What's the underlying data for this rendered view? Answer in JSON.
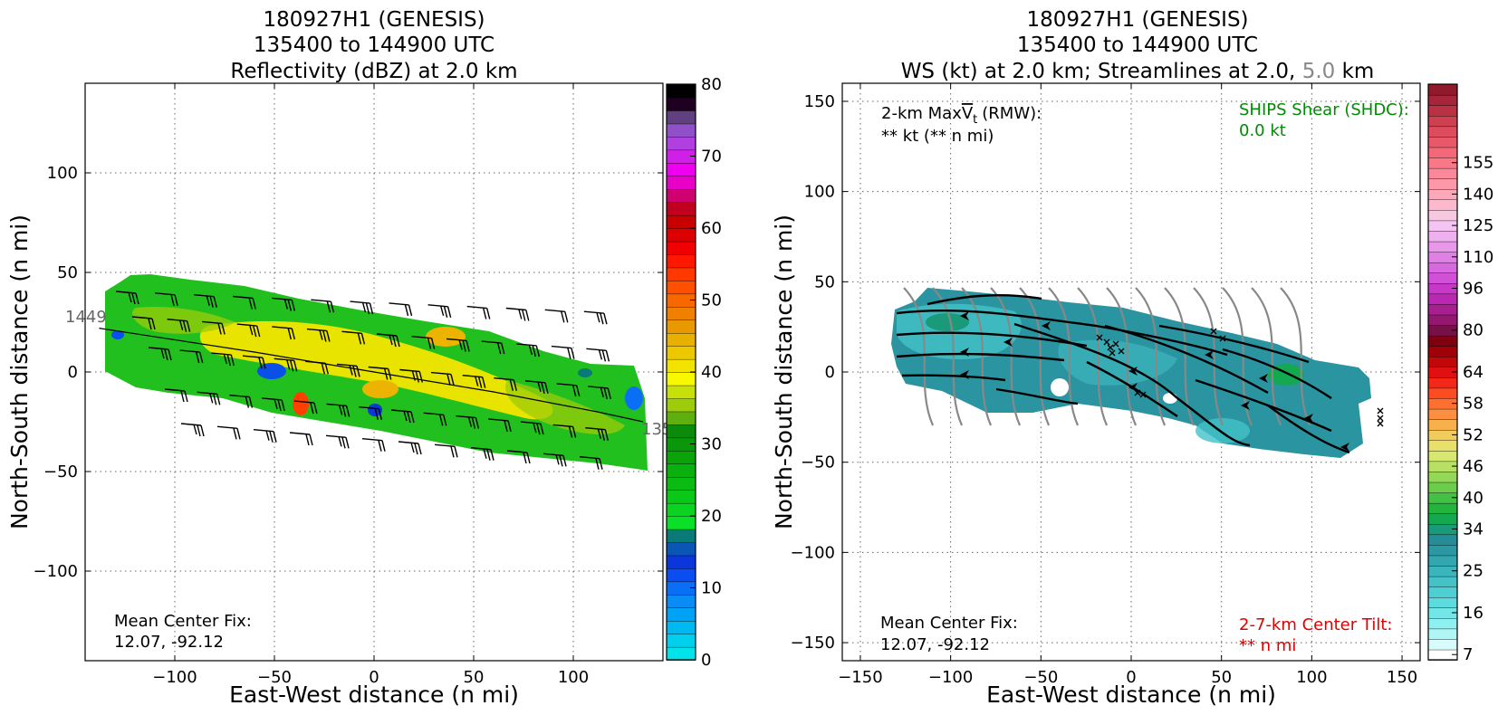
{
  "chart_data": [
    {
      "type": "heatmap",
      "title_lines": [
        "180927H1 (GENESIS)",
        "135400 to 144900 UTC",
        "Reflectivity (dBZ) at 2.0 km"
      ],
      "xlabel": "East-West distance (n mi)",
      "ylabel": "North-South distance (n mi)",
      "xlim": [
        -145,
        145
      ],
      "ylim": [
        -145,
        145
      ],
      "xticks": [
        -100,
        -50,
        0,
        50,
        100
      ],
      "xtick_labels": [
        "−100",
        "−50",
        "0",
        "50",
        "100"
      ],
      "yticks": [
        -100,
        -50,
        0,
        50,
        100
      ],
      "ytick_labels": [
        "−100",
        "−50",
        "0",
        "50",
        "100"
      ],
      "grid": true,
      "annotation_lines": [
        "Mean Center Fix:",
        "12.07, -92.12"
      ],
      "track_labels": {
        "start": "1449",
        "end": "135"
      },
      "track": {
        "x": [
          -138,
          -60,
          0,
          60,
          112,
          135
        ],
        "y": [
          22,
          10,
          0,
          -10,
          -20,
          -25
        ]
      },
      "colorbar": {
        "ticks": [
          0,
          10,
          20,
          30,
          40,
          50,
          60,
          70,
          80
        ],
        "tick_labels": [
          "0",
          "10",
          "20",
          "30",
          "40",
          "50",
          "60",
          "70",
          "80"
        ],
        "range": [
          0,
          80
        ],
        "colors": [
          "#00e3e8",
          "#00d0ec",
          "#00b9f0",
          "#00a2f5",
          "#0a8cf5",
          "#0a6ff5",
          "#0a4ef2",
          "#0a36dc",
          "#0a56b4",
          "#0a7a78",
          "#0ae028",
          "#0ad420",
          "#0ac818",
          "#0abc12",
          "#0ab00e",
          "#0aa40a",
          "#0a980a",
          "#0a8c0a",
          "#5fb00f",
          "#9ccc0a",
          "#c8e00a",
          "#f8f800",
          "#f2e400",
          "#ecc800",
          "#e8b000",
          "#e89800",
          "#f08000",
          "#f86800",
          "#ff5000",
          "#ff3800",
          "#ff1800",
          "#f00000",
          "#dc0000",
          "#c80000",
          "#c0001e",
          "#d0006e",
          "#e800c8",
          "#f000f0",
          "#d020e8",
          "#b040e0",
          "#9050c8",
          "#604080",
          "#200020",
          "#000000"
        ]
      }
    },
    {
      "type": "heatmap",
      "title_lines": [
        "180927H1 (GENESIS)",
        "135400 to 144900 UTC",
        "WS (kt) at 2.0 km; Streamlines at 2.0, ",
        "5.0",
        " km"
      ],
      "xlabel": "East-West distance (n mi)",
      "ylabel": "North-South distance (n mi)",
      "xlim": [
        -160,
        160
      ],
      "ylim": [
        -160,
        160
      ],
      "xticks": [
        -150,
        -100,
        -50,
        0,
        50,
        100,
        150
      ],
      "xtick_labels": [
        "−150",
        "−100",
        "−50",
        "0",
        "50",
        "100",
        "150"
      ],
      "yticks": [
        -150,
        -100,
        -50,
        0,
        50,
        100,
        150
      ],
      "ytick_labels": [
        "−150",
        "−100",
        "−50",
        "0",
        "50",
        "100",
        "150"
      ],
      "grid": true,
      "annotation_lines": [
        "Mean Center Fix:",
        "12.07, -92.12"
      ],
      "maxvt_lines": [
        "2-km Max",
        "V",
        "t",
        "(RMW):",
        "** kt (** n mi)"
      ],
      "shear_lines": [
        "SHIPS Shear (SHDC):",
        "0.0 kt"
      ],
      "tilt_lines": [
        "2-7-km Center Tilt:",
        "** n mi"
      ],
      "colorbar": {
        "tick_labels": [
          "7",
          "16",
          "25",
          "34",
          "40",
          "46",
          "52",
          "58",
          "64",
          "80",
          "96",
          "110",
          "125",
          "140",
          "155"
        ],
        "tick_levels": [
          0,
          4,
          8,
          12,
          15,
          18,
          21,
          24,
          27,
          31,
          35,
          38,
          41,
          44,
          47
        ],
        "n_levels": 49,
        "colors": [
          "#ffffff",
          "#d8fcfc",
          "#b0f6f6",
          "#8ff0f0",
          "#74e6e8",
          "#5edbde",
          "#4fcfd4",
          "#44c2c8",
          "#3cb4bc",
          "#34a6b0",
          "#2c98a4",
          "#268c98",
          "#1a9a78",
          "#14a850",
          "#22b43c",
          "#44c044",
          "#6ccc4c",
          "#94d85a",
          "#b8e064",
          "#d6e870",
          "#e8e06a",
          "#f0cc5c",
          "#f8b04c",
          "#fc9040",
          "#fe7030",
          "#fe4c22",
          "#f42818",
          "#e01010",
          "#c00808",
          "#a00008",
          "#800010",
          "#781048",
          "#941870",
          "#a82090",
          "#b828b0",
          "#c838c8",
          "#d050d8",
          "#d868e0",
          "#e080e4",
          "#e898e8",
          "#eeb0ee",
          "#f4c4f2",
          "#f8c8e0",
          "#fcb8cc",
          "#fca8b8",
          "#fc98a8",
          "#fa8898",
          "#f87888",
          "#f26878",
          "#e85868",
          "#dc4c5c",
          "#cc4050",
          "#b83244",
          "#a42638",
          "#901a2c"
        ]
      }
    }
  ]
}
